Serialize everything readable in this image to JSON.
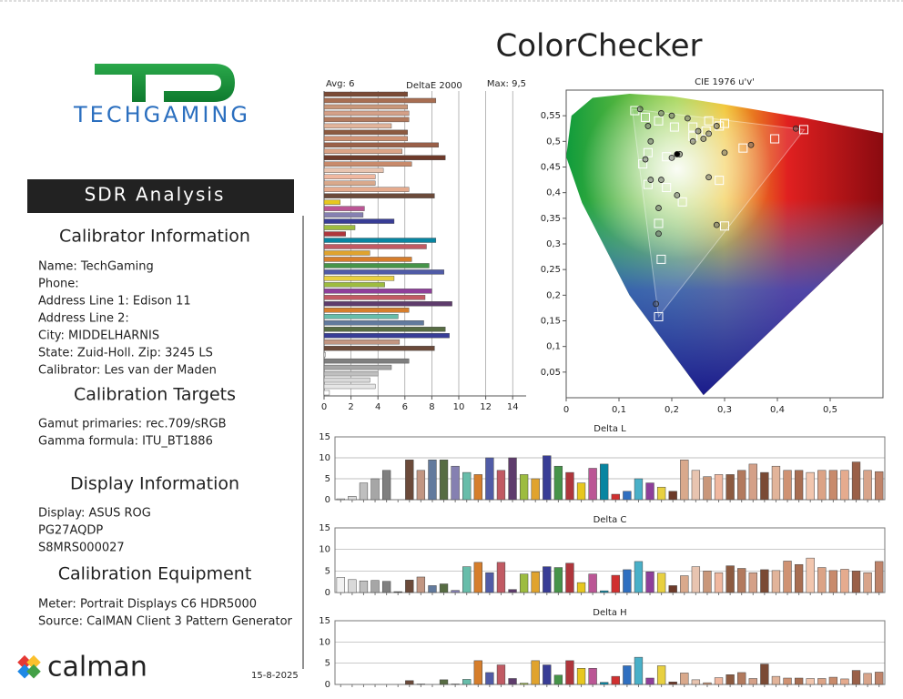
{
  "header": {
    "title": "ColorChecker",
    "logo_text": "TECHGAMING",
    "section": "SDR Analysis"
  },
  "sections": [
    {
      "heading": "Calibrator Information",
      "lines": [
        "Name: TechGaming",
        "Phone:",
        "Address Line 1: Edison 11",
        "Address Line 2:",
        "City: MIDDELHARNIS",
        "State: Zuid-Holl.   Zip: 3245 LS",
        "Calibrator: Les van der Maden"
      ]
    },
    {
      "heading": "Calibration Targets",
      "lines": [
        "Gamut primaries: rec.709/sRGB",
        "Gamma formula: ITU_BT1886"
      ]
    },
    {
      "heading": "Display Information",
      "lines": [
        "Display: ASUS ROG",
        "PG27AQDP",
        "S8MRS000027"
      ]
    },
    {
      "heading": "Calibration Equipment",
      "lines": [
        "Meter: Portrait Displays C6 HDR5000",
        "Source: CalMAN Client 3 Pattern Generator"
      ]
    }
  ],
  "footer": {
    "brand": "calman",
    "date": "15-8-2025"
  },
  "chart_data": [
    {
      "type": "hbar",
      "title": "DeltaE 2000",
      "annotations": [
        "Avg: 6",
        "Max: 9,5"
      ],
      "grid": true,
      "xlim": [
        0,
        15
      ],
      "xticks": [
        0,
        2,
        4,
        6,
        8,
        10,
        12,
        14
      ],
      "values": [
        6.2,
        8.3,
        6.2,
        6.3,
        6.3,
        5,
        6.2,
        6.2,
        8.5,
        5.8,
        9,
        6.5,
        4.4,
        3.8,
        3.8,
        6.3,
        8.2,
        1.2,
        3,
        2.9,
        5.2,
        2.3,
        1.6,
        8.3,
        7.6,
        3.4,
        6.5,
        7.8,
        8.9,
        5.2,
        4.5,
        8,
        7.5,
        9.5,
        6.3,
        5.5,
        7.4,
        9,
        9.3,
        5.6,
        8.2,
        0.1,
        6.3,
        5,
        4,
        3.4,
        3.8,
        0.4
      ],
      "colors": [
        "#7a4a35",
        "#a86e52",
        "#c9977a",
        "#d4a088",
        "#b27a5e",
        "#e2b49a",
        "#8c5a40",
        "#cf9273",
        "#9a6048",
        "#dba386",
        "#6d3a2a",
        "#c88a6b",
        "#e8c4b0",
        "#f0b8a0",
        "#d9a98c",
        "#e5ab8e",
        "#6b4a3a",
        "#e7c71f",
        "#bb5695",
        "#8580b1",
        "#383d96",
        "#9dbc40",
        "#af363c",
        "#0885a1",
        "#c15a63",
        "#e0a32e",
        "#d67e2c",
        "#469449",
        "#505ba6",
        "#e8d040",
        "#9dbc40",
        "#8e3f9a",
        "#c15a63",
        "#5e3c6c",
        "#d67e2c",
        "#67bdaa",
        "#627a9d",
        "#576c43",
        "#383d96",
        "#c29682",
        "#6b4a3a",
        "#f2f2f2",
        "#7f7f7f",
        "#a6a6a6",
        "#bfbfbf",
        "#d9d9d9",
        "#e6e6e6",
        "#ffffff"
      ]
    },
    {
      "type": "scatter",
      "title": "CIE 1976 u'v'",
      "xlim": [
        0,
        0.6
      ],
      "ylim": [
        0,
        0.6
      ],
      "xticks": [
        0,
        {
          "value": 0.1,
          "label": "0,1"
        },
        {
          "value": 0.2,
          "label": "0,2"
        },
        {
          "value": 0.3,
          "label": "0,3"
        },
        {
          "value": 0.4,
          "label": "0,4"
        },
        {
          "value": 0.5,
          "label": "0,5"
        }
      ],
      "yticks": [
        {
          "value": 0.05,
          "label": "0,05"
        },
        {
          "value": 0.1,
          "label": "0,1"
        },
        {
          "value": 0.15,
          "label": "0,15"
        },
        {
          "value": 0.2,
          "label": "0,2"
        },
        {
          "value": 0.25,
          "label": "0,25"
        },
        {
          "value": 0.3,
          "label": "0,3"
        },
        {
          "value": 0.35,
          "label": "0,35"
        },
        {
          "value": 0.4,
          "label": "0,4"
        },
        {
          "value": 0.45,
          "label": "0,45"
        },
        {
          "value": 0.5,
          "label": "0,5"
        },
        {
          "value": 0.55,
          "label": "0,55"
        }
      ],
      "series": [
        {
          "marker": "square",
          "color": "#ffffff",
          "x": [
            0.45,
            0.395,
            0.335,
            0.3,
            0.29,
            0.22,
            0.175,
            0.18,
            0.175,
            0.19,
            0.155,
            0.145,
            0.155,
            0.175,
            0.15,
            0.13,
            0.205,
            0.24,
            0.27,
            0.3,
            0.19,
            0.24,
            0.265,
            0.29
          ],
          "y": [
            0.523,
            0.505,
            0.487,
            0.335,
            0.424,
            0.382,
            0.158,
            0.27,
            0.34,
            0.41,
            0.416,
            0.456,
            0.478,
            0.54,
            0.547,
            0.56,
            0.528,
            0.528,
            0.54,
            0.535,
            0.47,
            0.51,
            0.52,
            0.53
          ]
        },
        {
          "marker": "circle",
          "color": "#555555",
          "x": [
            0.435,
            0.35,
            0.3,
            0.285,
            0.27,
            0.21,
            0.17,
            0.175,
            0.175,
            0.18,
            0.16,
            0.15,
            0.16,
            0.155,
            0.14,
            0.18,
            0.2,
            0.23,
            0.25,
            0.26,
            0.27,
            0.285,
            0.2,
            0.215,
            0.24
          ],
          "y": [
            0.525,
            0.493,
            0.478,
            0.337,
            0.43,
            0.395,
            0.183,
            0.32,
            0.37,
            0.425,
            0.425,
            0.465,
            0.5,
            0.53,
            0.563,
            0.555,
            0.55,
            0.545,
            0.52,
            0.505,
            0.515,
            0.53,
            0.468,
            0.475,
            0.5
          ]
        },
        {
          "marker": "circle",
          "color": "#000000",
          "x": [
            0.21
          ],
          "y": [
            0.475
          ]
        }
      ]
    },
    {
      "type": "bar",
      "title": "Delta L",
      "ylim": [
        0,
        15
      ],
      "yticks": [
        0,
        5,
        10,
        15
      ],
      "grid": true,
      "values": [
        0.2,
        0.8,
        4,
        5,
        7,
        0,
        9.5,
        7,
        9.5,
        9.5,
        8,
        6.5,
        6,
        10,
        7,
        10,
        6,
        5,
        10.5,
        8,
        6.5,
        4,
        7.5,
        8.5,
        1.3,
        2,
        5,
        4,
        3,
        2,
        9.5,
        7,
        5.5,
        6,
        6,
        7,
        8.5,
        6.5,
        8,
        7,
        7,
        6.5,
        7,
        7,
        7,
        9,
        7,
        6.7
      ],
      "colors": [
        "#f2f2f2",
        "#d9d9d9",
        "#bfbfbf",
        "#a6a6a6",
        "#7f7f7f",
        "#4d4d4d",
        "#6b4a3a",
        "#c29682",
        "#627a9d",
        "#576c43",
        "#8580b1",
        "#67bdaa",
        "#d67e2c",
        "#505ba6",
        "#c15a63",
        "#5e3c6c",
        "#9dbc40",
        "#e0a32e",
        "#383d96",
        "#469449",
        "#af363c",
        "#e7c71f",
        "#bb5695",
        "#0885a1",
        "#d03030",
        "#2f6fc0",
        "#49b0c8",
        "#8e3f9a",
        "#e8d040",
        "#6d3a2a",
        "#d9a98c",
        "#e8c4b0",
        "#c9977a",
        "#f0b8a0",
        "#8c5a40",
        "#b27a5e",
        "#d4a088",
        "#7a4a35",
        "#e2b49a",
        "#cf9273",
        "#a86e52",
        "#f2c6ae",
        "#dba386",
        "#c88a6b",
        "#e5ab8e",
        "#9a6048",
        "#d8a48a",
        "#c0846a"
      ]
    },
    {
      "type": "bar",
      "title": "Delta C",
      "ylim": [
        0,
        15
      ],
      "yticks": [
        0,
        5,
        10,
        15
      ],
      "grid": true,
      "values": [
        3.5,
        3,
        2.7,
        2.8,
        2.6,
        0.2,
        2.9,
        3.6,
        1.6,
        2,
        0.5,
        6,
        7,
        4.6,
        7,
        0.7,
        4.3,
        4.8,
        6,
        5.8,
        6.8,
        2.3,
        4.3,
        0.4,
        4,
        5.3,
        7.2,
        4.8,
        4.5,
        1.6,
        3.9,
        6,
        5,
        4.6,
        6.2,
        5.6,
        4.6,
        5.3,
        5.1,
        7.3,
        6.5,
        8,
        5.8,
        5.1,
        5.4,
        5,
        4.6,
        7.2
      ],
      "colors": [
        "#f2f2f2",
        "#d9d9d9",
        "#bfbfbf",
        "#a6a6a6",
        "#7f7f7f",
        "#4d4d4d",
        "#6b4a3a",
        "#c29682",
        "#627a9d",
        "#576c43",
        "#8580b1",
        "#67bdaa",
        "#d67e2c",
        "#505ba6",
        "#c15a63",
        "#5e3c6c",
        "#9dbc40",
        "#e0a32e",
        "#383d96",
        "#469449",
        "#af363c",
        "#e7c71f",
        "#bb5695",
        "#0885a1",
        "#d03030",
        "#2f6fc0",
        "#49b0c8",
        "#8e3f9a",
        "#e8d040",
        "#6d3a2a",
        "#d9a98c",
        "#e8c4b0",
        "#c9977a",
        "#f0b8a0",
        "#8c5a40",
        "#b27a5e",
        "#d4a088",
        "#7a4a35",
        "#e2b49a",
        "#cf9273",
        "#a86e52",
        "#f2c6ae",
        "#dba386",
        "#c88a6b",
        "#e5ab8e",
        "#9a6048",
        "#d8a48a",
        "#c0846a"
      ]
    },
    {
      "type": "bar",
      "title": "Delta H",
      "ylim": [
        0,
        15
      ],
      "yticks": [
        0,
        5,
        10,
        15
      ],
      "grid": true,
      "values": [
        0,
        0,
        0,
        0,
        0,
        0,
        0.9,
        0.1,
        0,
        1.1,
        0.1,
        1.2,
        5.6,
        2.8,
        4.6,
        1.4,
        0.3,
        5.6,
        4.6,
        2.2,
        5.6,
        3.8,
        3.8,
        0.5,
        1.9,
        4.4,
        6.4,
        1.5,
        4.4,
        0.6,
        2.7,
        1.1,
        0.4,
        1.6,
        2.3,
        2.8,
        1.4,
        4.8,
        1.9,
        1.5,
        1.5,
        1.4,
        1.4,
        1.7,
        1.3,
        3.3,
        2.6,
        2.9
      ],
      "colors": [
        "#f2f2f2",
        "#d9d9d9",
        "#bfbfbf",
        "#a6a6a6",
        "#7f7f7f",
        "#4d4d4d",
        "#6b4a3a",
        "#c29682",
        "#627a9d",
        "#576c43",
        "#8580b1",
        "#67bdaa",
        "#d67e2c",
        "#505ba6",
        "#c15a63",
        "#5e3c6c",
        "#9dbc40",
        "#e0a32e",
        "#383d96",
        "#469449",
        "#af363c",
        "#e7c71f",
        "#bb5695",
        "#0885a1",
        "#d03030",
        "#2f6fc0",
        "#49b0c8",
        "#8e3f9a",
        "#e8d040",
        "#6d3a2a",
        "#d9a98c",
        "#e8c4b0",
        "#c9977a",
        "#f0b8a0",
        "#8c5a40",
        "#b27a5e",
        "#d4a088",
        "#7a4a35",
        "#e2b49a",
        "#cf9273",
        "#a86e52",
        "#f2c6ae",
        "#dba386",
        "#c88a6b",
        "#e5ab8e",
        "#9a6048",
        "#d8a48a",
        "#c0846a"
      ]
    }
  ]
}
